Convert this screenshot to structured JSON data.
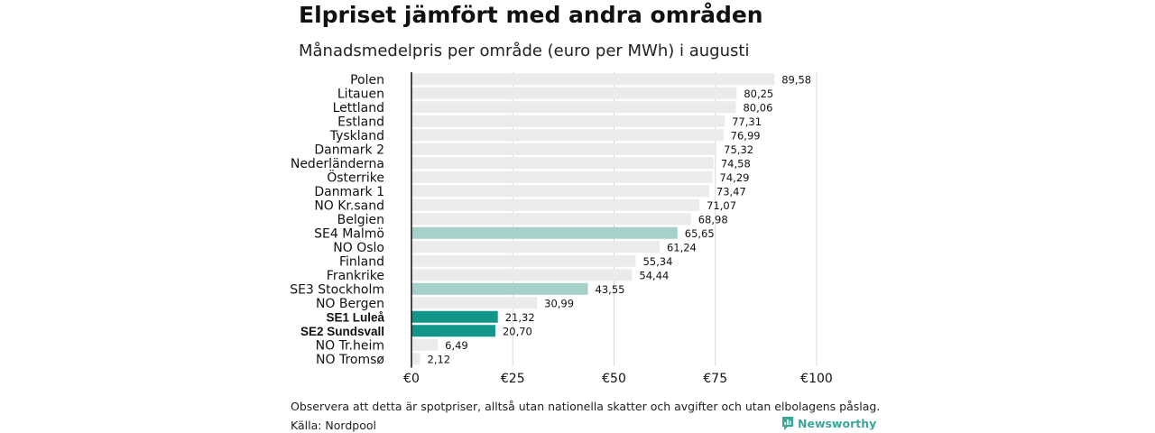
{
  "chart_data": {
    "type": "bar",
    "orientation": "horizontal",
    "title": "Elpriset jämfört med andra områden",
    "subtitle": "Månadsmedelpris per område (euro per MWh) i augusti",
    "categories": [
      "Polen",
      "Litauen",
      "Lettland",
      "Estland",
      "Tyskland",
      "Danmark  2",
      "Nederländerna",
      "Österrike",
      "Danmark  1",
      "NO Kr.sand",
      "Belgien",
      "SE4  Malmö",
      "NO Oslo",
      "Finland",
      "Frankrike",
      "SE3  Stockholm",
      "NO Bergen",
      "SE1 Luleå",
      "SE2 Sundsvall",
      "NO Tr.heim",
      "NO Tromsø"
    ],
    "values": [
      89.58,
      80.25,
      80.06,
      77.31,
      76.99,
      75.32,
      74.58,
      74.29,
      73.47,
      71.07,
      68.98,
      65.65,
      61.24,
      55.34,
      54.44,
      43.55,
      30.99,
      21.32,
      20.7,
      6.49,
      2.12
    ],
    "value_labels": [
      "89,58",
      "80,25",
      "80,06",
      "77,31",
      "76,99",
      "75,32",
      "74,58",
      "74,29",
      "73,47",
      "71,07",
      "68,98",
      "65,65",
      "61,24",
      "55,34",
      "54,44",
      "43,55",
      "30,99",
      "21,32",
      "20,70",
      "6,49",
      "2,12"
    ],
    "highlight": [
      "default",
      "default",
      "default",
      "default",
      "default",
      "default",
      "default",
      "default",
      "default",
      "default",
      "default",
      "light",
      "default",
      "default",
      "default",
      "light",
      "default",
      "strong",
      "strong",
      "default",
      "default"
    ],
    "bold_labels": [
      "SE1 Luleå",
      "SE2 Sundsvall"
    ],
    "xlim": [
      0,
      100
    ],
    "x_ticks": [
      0,
      25,
      50,
      75,
      100
    ],
    "x_tick_labels": [
      "€0",
      "€25",
      "€50",
      "€75",
      "€100"
    ],
    "grid": true,
    "colors": {
      "default": "#ebebeb",
      "light": "#a6d1ca",
      "strong": "#13968a"
    }
  },
  "footer": {
    "note": "Observera att detta är spotpriser, alltså utan nationella skatter och avgifter och utan elbolagens påslag.",
    "source": "Källa: Nordpool",
    "brand": "Newsworthy"
  }
}
